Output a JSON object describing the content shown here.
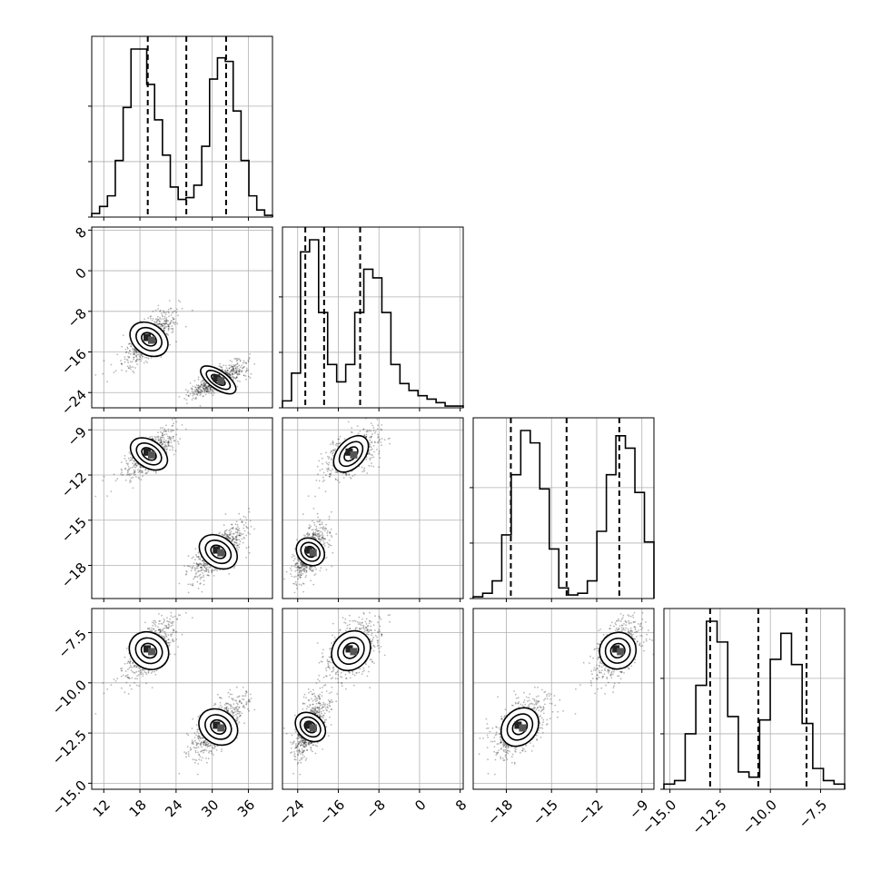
{
  "chart_data": {
    "type": "corner",
    "params": [
      {
        "range": [
          10,
          40
        ],
        "ticks": [
          12,
          18,
          24,
          30,
          36
        ],
        "tick_labels": [
          "12",
          "18",
          "24",
          "30",
          "36"
        ],
        "quantiles": [
          19.3,
          25.7,
          32.3
        ]
      },
      {
        "range": [
          -27,
          8.6
        ],
        "ticks": [
          -24,
          -16,
          -8,
          0,
          8
        ],
        "tick_labels": [
          "−24",
          "−16",
          "−8",
          "0",
          "8"
        ],
        "quantiles": [
          -22.5,
          -18.8,
          -11.7
        ]
      },
      {
        "range": [
          -20.2,
          -8.2
        ],
        "ticks": [
          -18,
          -15,
          -12,
          -9
        ],
        "tick_labels": [
          "−18",
          "−15",
          "−12",
          "−9"
        ],
        "quantiles": [
          -17.7,
          -14.0,
          -10.5
        ]
      },
      {
        "range": [
          -15.3,
          -6.3
        ],
        "ticks": [
          -15.0,
          -12.5,
          -10.0,
          -7.5
        ],
        "tick_labels": [
          "−15.0",
          "−12.5",
          "−10.0",
          "−7.5"
        ],
        "quantiles": [
          -13.0,
          -10.6,
          -8.2
        ]
      }
    ],
    "histograms": [
      {
        "edges_range": [
          10,
          40
        ],
        "counts": [
          0.02,
          0.06,
          0.12,
          0.32,
          0.62,
          0.95,
          0.95,
          0.75,
          0.55,
          0.35,
          0.17,
          0.1,
          0.11,
          0.18,
          0.4,
          0.78,
          0.9,
          0.88,
          0.6,
          0.32,
          0.12,
          0.04,
          0.01
        ]
      },
      {
        "edges_range": [
          -27,
          8.6
        ],
        "counts": [
          0.04,
          0.2,
          0.9,
          0.97,
          0.55,
          0.25,
          0.15,
          0.25,
          0.55,
          0.8,
          0.75,
          0.55,
          0.25,
          0.14,
          0.1,
          0.07,
          0.05,
          0.03,
          0.01,
          0.01
        ]
      },
      {
        "edges_range": [
          -20.2,
          -8.2
        ],
        "counts": [
          0.01,
          0.03,
          0.1,
          0.36,
          0.7,
          0.95,
          0.88,
          0.62,
          0.28,
          0.06,
          0.02,
          0.03,
          0.1,
          0.38,
          0.7,
          0.92,
          0.85,
          0.6,
          0.32
        ]
      },
      {
        "edges_range": [
          -15.3,
          -6.3
        ],
        "counts": [
          0.03,
          0.05,
          0.32,
          0.6,
          0.97,
          0.85,
          0.42,
          0.1,
          0.07,
          0.4,
          0.75,
          0.9,
          0.72,
          0.38,
          0.12,
          0.05,
          0.03
        ]
      }
    ],
    "clusters": [
      {
        "center": [
          19.5,
          -13.5,
          -10.6,
          -8.4
        ],
        "sd": [
          2.2,
          2.7,
          0.8,
          0.8
        ]
      },
      {
        "center": [
          31.0,
          -21.5,
          -17.1,
          -12.2
        ],
        "sd": [
          2.2,
          1.6,
          0.9,
          0.75
        ]
      }
    ],
    "grid": true,
    "quantile_lines": "dashed"
  }
}
